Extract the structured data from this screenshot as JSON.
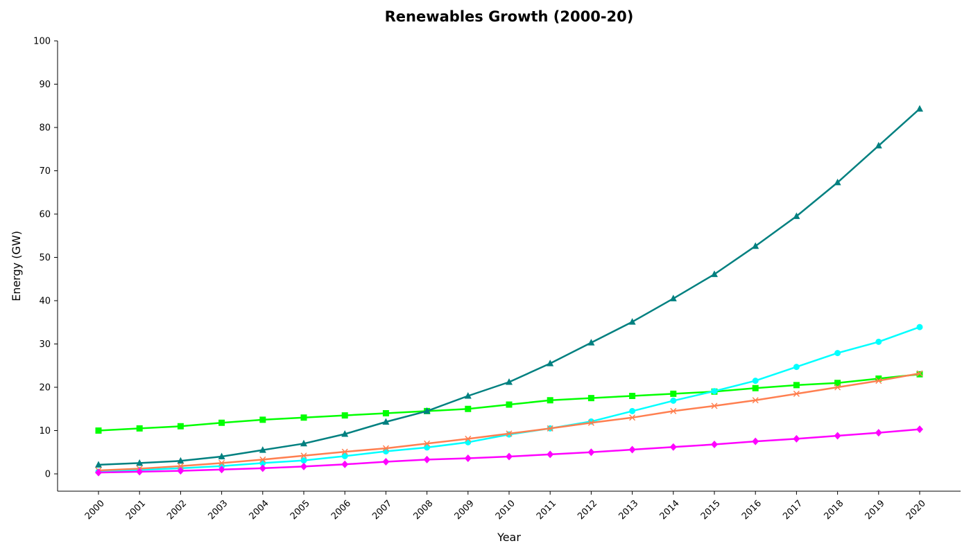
{
  "chart_data": {
    "type": "line",
    "title": "Renewables Growth (2000-20)",
    "xlabel": "Year",
    "ylabel": "Energy (GW)",
    "ylim": [
      -4,
      100
    ],
    "yticks": [
      "0",
      "10",
      "20",
      "30",
      "40",
      "50",
      "60",
      "70",
      "80",
      "90",
      "100"
    ],
    "categories": [
      "2000",
      "2001",
      "2002",
      "2003",
      "2004",
      "2005",
      "2006",
      "2007",
      "2008",
      "2009",
      "2010",
      "2011",
      "2012",
      "2013",
      "2014",
      "2015",
      "2016",
      "2017",
      "2018",
      "2019",
      "2020"
    ],
    "grid": false,
    "legend": "none",
    "series": [
      {
        "color": "#00ff00",
        "marker": "square",
        "values": [
          10.0,
          10.5,
          11.0,
          11.8,
          12.5,
          13.0,
          13.5,
          14.0,
          14.5,
          15.0,
          16.0,
          17.0,
          17.5,
          18.0,
          18.5,
          19.0,
          19.8,
          20.5,
          21.0,
          22.0,
          23.0
        ]
      },
      {
        "color": "#008080",
        "marker": "triangle",
        "values": [
          2.1,
          2.5,
          3.0,
          4.0,
          5.5,
          7.0,
          9.2,
          12.0,
          14.5,
          18.0,
          21.2,
          25.5,
          30.3,
          35.1,
          40.5,
          46.1,
          52.6,
          59.5,
          67.3,
          75.8,
          84.3
        ]
      },
      {
        "color": "#00ffff",
        "marker": "circle",
        "values": [
          0.5,
          0.9,
          1.3,
          1.8,
          2.5,
          3.1,
          4.1,
          5.2,
          6.1,
          7.3,
          9.1,
          10.5,
          12.1,
          14.5,
          16.9,
          19.1,
          21.5,
          24.7,
          27.9,
          30.5,
          33.9
        ]
      },
      {
        "color": "#ff7f50",
        "marker": "x",
        "values": [
          0.8,
          1.2,
          1.8,
          2.5,
          3.3,
          4.2,
          5.1,
          5.9,
          7.0,
          8.1,
          9.3,
          10.5,
          11.8,
          13.0,
          14.5,
          15.7,
          17.0,
          18.5,
          20.0,
          21.5,
          23.2
        ]
      },
      {
        "color": "#ff00ff",
        "marker": "diamond",
        "values": [
          0.3,
          0.5,
          0.7,
          1.0,
          1.3,
          1.7,
          2.2,
          2.8,
          3.3,
          3.6,
          4.0,
          4.5,
          5.0,
          5.6,
          6.2,
          6.8,
          7.5,
          8.1,
          8.8,
          9.5,
          10.3
        ]
      }
    ]
  }
}
